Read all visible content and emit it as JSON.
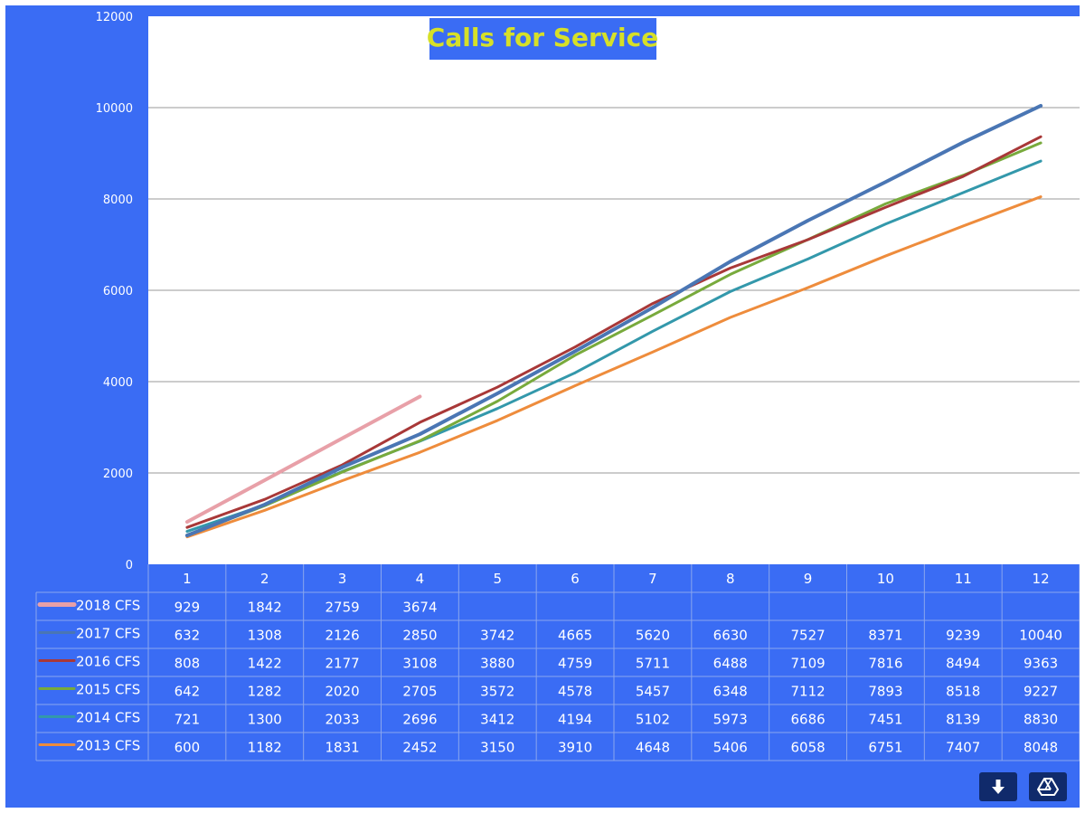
{
  "chart_data": {
    "type": "line",
    "title": "Calls for Service",
    "categories": [
      "1",
      "2",
      "3",
      "4",
      "5",
      "6",
      "7",
      "8",
      "9",
      "10",
      "11",
      "12"
    ],
    "ylim": [
      0,
      12000
    ],
    "yticks": [
      0,
      2000,
      4000,
      6000,
      8000,
      10000,
      12000
    ],
    "grid": true,
    "legend": "data-table",
    "series": [
      {
        "name": "2018 CFS",
        "color": "#e8a0a8",
        "values": [
          929,
          1842,
          2759,
          3674,
          null,
          null,
          null,
          null,
          null,
          null,
          null,
          null
        ]
      },
      {
        "name": "2017 CFS",
        "color": "#4a76b4",
        "values": [
          632,
          1308,
          2126,
          2850,
          3742,
          4665,
          5620,
          6630,
          7527,
          8371,
          9239,
          10040
        ]
      },
      {
        "name": "2016 CFS",
        "color": "#a83838",
        "values": [
          808,
          1422,
          2177,
          3108,
          3880,
          4759,
          5711,
          6488,
          7109,
          7816,
          8494,
          9363
        ]
      },
      {
        "name": "2015 CFS",
        "color": "#78aa3c",
        "values": [
          642,
          1282,
          2020,
          2705,
          3572,
          4578,
          5457,
          6348,
          7112,
          7893,
          8518,
          9227
        ]
      },
      {
        "name": "2014 CFS",
        "color": "#3398ab",
        "values": [
          721,
          1300,
          2033,
          2696,
          3412,
          4194,
          5102,
          5973,
          6686,
          7451,
          8139,
          8830
        ]
      },
      {
        "name": "2013 CFS",
        "color": "#ee8c3c",
        "values": [
          600,
          1182,
          1831,
          2452,
          3150,
          3910,
          4648,
          5406,
          6058,
          6751,
          7407,
          8048
        ]
      }
    ]
  },
  "colors": {
    "background": "#3a6cf4",
    "plot_area": "#ffffff",
    "title_text": "#d6e028",
    "gridline": "#9a9a9a"
  },
  "toolbar": {
    "download_icon": "download-arrow-icon",
    "drive_icon": "drive-triangle-icon"
  }
}
